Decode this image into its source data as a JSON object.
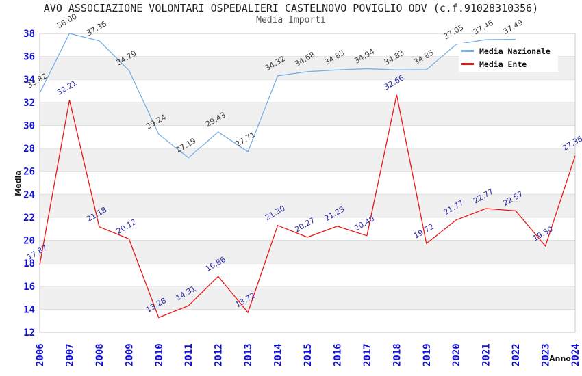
{
  "header": {
    "title": "AVO ASSOCIAZIONE VOLONTARI OSPEDALIERI CASTELNOVO POVIGLIO ODV (c.f.91028310356)",
    "subtitle": "Media Importi"
  },
  "chart_data": {
    "type": "line",
    "x": [
      "2006",
      "2007",
      "2008",
      "2009",
      "2010",
      "2011",
      "2012",
      "2013",
      "2014",
      "2015",
      "2016",
      "2017",
      "2018",
      "2019",
      "2020",
      "2021",
      "2022",
      "2023",
      "2024"
    ],
    "xlabel": "Anno",
    "ylabel": "Media",
    "ylim": [
      12,
      38
    ],
    "ytick_step": 2,
    "grid": true,
    "legend_position": "top-right",
    "series": [
      {
        "name": "Media Nazionale",
        "color": "#77aee6",
        "label_color": "#3a3a3a",
        "values": [
          32.82,
          38.0,
          37.36,
          34.79,
          29.24,
          27.19,
          29.43,
          27.71,
          34.32,
          34.68,
          34.83,
          34.94,
          34.83,
          34.85,
          37.05,
          37.46,
          37.49,
          null,
          null
        ]
      },
      {
        "name": "Media Ente",
        "color": "#e81717",
        "label_color": "#2b2ba8",
        "values": [
          17.87,
          32.21,
          21.18,
          20.12,
          13.28,
          14.31,
          16.86,
          13.72,
          21.3,
          20.27,
          21.23,
          20.4,
          32.66,
          19.72,
          21.77,
          22.77,
          22.57,
          19.5,
          27.36
        ]
      }
    ],
    "colors": {
      "tick_label": "#1111d6",
      "band_white": "#ffffff",
      "band_gray": "#f0f0f0",
      "gridline": "#dedede",
      "plot_border": "#c8c8c8",
      "axis_title": "#111111"
    }
  }
}
